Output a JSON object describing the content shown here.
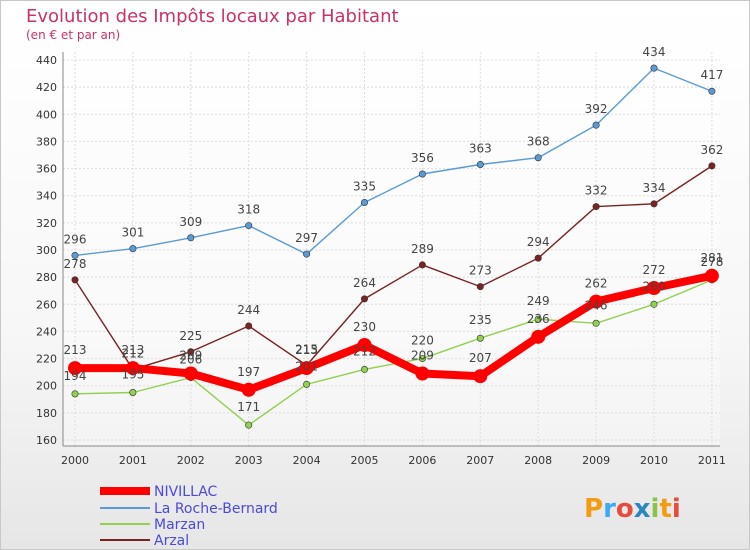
{
  "chart_data": {
    "type": "line",
    "title": "Evolution des Impôts locaux par Habitant",
    "subtitle": "(en € et par an)",
    "x": [
      "2000",
      "2001",
      "2002",
      "2003",
      "2004",
      "2005",
      "2006",
      "2007",
      "2008",
      "2009",
      "2010",
      "2011"
    ],
    "ylim": [
      160,
      440
    ],
    "yticks": [
      160,
      180,
      200,
      220,
      240,
      260,
      280,
      300,
      320,
      340,
      360,
      380,
      400,
      420,
      440
    ],
    "grid": true,
    "legend_position": "bottom-left",
    "series": [
      {
        "name": "NIVILLAC",
        "color": "#ff0000",
        "values": [
          213,
          213,
          209,
          197,
          213,
          230,
          209,
          207,
          236,
          262,
          272,
          281
        ]
      },
      {
        "name": "La Roche-Bernard",
        "color": "#5b9bd5",
        "values": [
          296,
          301,
          309,
          318,
          297,
          335,
          356,
          363,
          368,
          392,
          434,
          417
        ]
      },
      {
        "name": "Marzan",
        "color": "#92d050",
        "values": [
          194,
          195,
          206,
          171,
          201,
          212,
          220,
          235,
          249,
          246,
          260,
          278
        ]
      },
      {
        "name": "Arzal",
        "color": "#7b2222",
        "values": [
          278,
          212,
          225,
          244,
          215,
          264,
          289,
          273,
          294,
          332,
          334,
          362
        ]
      }
    ]
  },
  "watermark": "Proxiti"
}
